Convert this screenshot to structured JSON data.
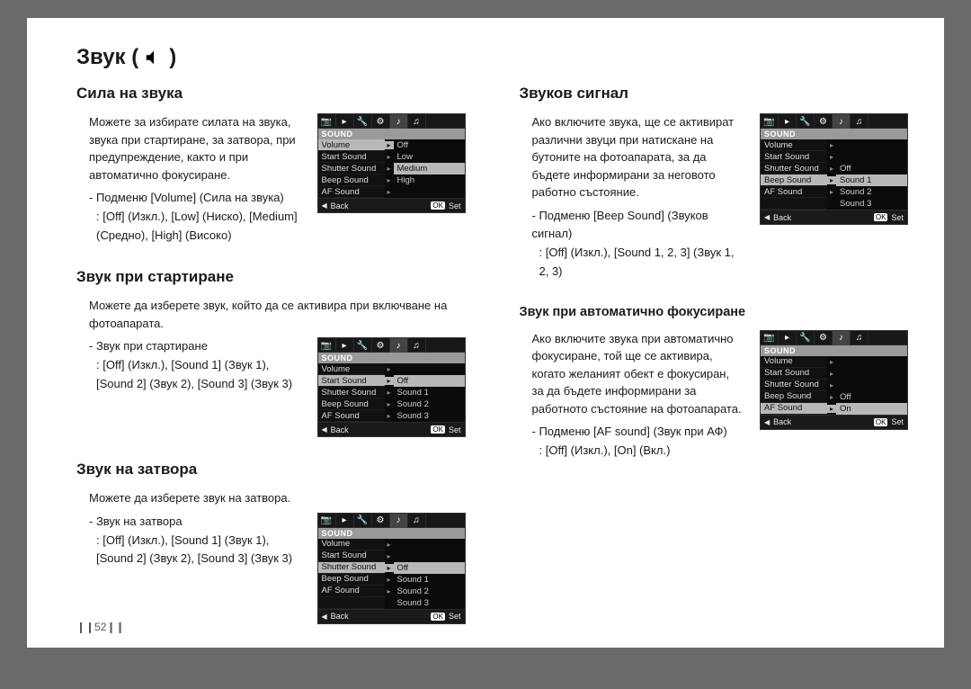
{
  "page": {
    "title_prefix": "Звук (",
    "title_suffix": ")",
    "page_number": "52"
  },
  "lcd_common": {
    "header": "SOUND",
    "back": "Back",
    "ok": "OK",
    "set": "Set",
    "top_icons": [
      "📷",
      "▸",
      "🔧",
      "⚙",
      "♪",
      "♫"
    ]
  },
  "volume": {
    "title": "Сила на звука",
    "desc": "Можете за избирате силата на звука, звука при стартиране, за затвора, при предупреждение, както и при автоматично фокусиране.",
    "submenu_lead": "- Подменю [Volume] (Сила на звука)",
    "submenu_vals": ": [Off] (Изкл.), [Low] (Ниско), [Medium] (Средно), [High] (Високо)",
    "lcd": {
      "rows": [
        {
          "left": "Volume",
          "sel": true,
          "right": "Off"
        },
        {
          "left": "Start Sound",
          "right": "Low"
        },
        {
          "left": "Shutter Sound",
          "right": "Medium",
          "rsel": true
        },
        {
          "left": "Beep Sound",
          "right": "High"
        },
        {
          "left": "AF Sound",
          "right": ""
        }
      ]
    }
  },
  "start": {
    "title": "Звук при стартиране",
    "desc": "Можете да изберете звук, който да се активира при включване на фотоапарата.",
    "submenu_lead": "- Звук при стартиране",
    "submenu_vals": ": [Off] (Изкл.), [Sound 1] (Звук 1), [Sound 2] (Звук 2), [Sound 3] (Звук 3)",
    "lcd": {
      "rows": [
        {
          "left": "Volume",
          "right": ""
        },
        {
          "left": "Start Sound",
          "sel": true,
          "right": "Off",
          "rsel": true
        },
        {
          "left": "Shutter Sound",
          "right": "Sound 1"
        },
        {
          "left": "Beep Sound",
          "right": "Sound 2"
        },
        {
          "left": "AF Sound",
          "right": "Sound 3"
        }
      ]
    }
  },
  "shutter": {
    "title": "Звук на затвора",
    "desc": "Можете да изберете звук на затвора.",
    "submenu_lead": "- Звук на затвора",
    "submenu_vals": ": [Off] (Изкл.), [Sound 1] (Звук 1), [Sound 2] (Звук 2), [Sound 3] (Звук 3)",
    "lcd": {
      "rows": [
        {
          "left": "Volume",
          "right": ""
        },
        {
          "left": "Start Sound",
          "right": ""
        },
        {
          "left": "Shutter Sound",
          "sel": true,
          "right": "Off",
          "rsel": true
        },
        {
          "left": "Beep Sound",
          "right": "Sound 1"
        },
        {
          "left": "AF Sound",
          "right": "Sound 2"
        },
        {
          "left": "",
          "right": "Sound 3"
        }
      ]
    }
  },
  "beep": {
    "title": "Звуков сигнал",
    "desc": "Ако включите звука, ще се активират различни звуци при натискане на бутоните на фотоапарата, за да бъдете информирани за неговото работно състояние.",
    "submenu_lead": "- Подменю [Beep Sound] (Звуков сигнал)",
    "submenu_vals": ": [Off] (Изкл.), [Sound 1, 2, 3] (Звук 1, 2, 3)",
    "lcd": {
      "rows": [
        {
          "left": "Volume",
          "right": ""
        },
        {
          "left": "Start Sound",
          "right": ""
        },
        {
          "left": "Shutter Sound",
          "right": "Off"
        },
        {
          "left": "Beep Sound",
          "sel": true,
          "right": "Sound 1",
          "rsel": true
        },
        {
          "left": "AF Sound",
          "right": "Sound 2"
        },
        {
          "left": "",
          "right": "Sound 3"
        }
      ]
    }
  },
  "af": {
    "title": "Звук при автоматично фокусиране",
    "desc": "Ако включите звука при автоматично фокусиране, той ще се активира, когато желаният обект е фокусиран, за да бъдете информирани за работното състояние на фотоапарата.",
    "submenu_lead": "- Подменю [AF sound] (Звук при АФ)",
    "submenu_vals": ": [Off] (Изкл.), [On] (Вкл.)",
    "lcd": {
      "rows": [
        {
          "left": "Volume",
          "right": ""
        },
        {
          "left": "Start Sound",
          "right": ""
        },
        {
          "left": "Shutter Sound",
          "right": ""
        },
        {
          "left": "Beep Sound",
          "right": "Off"
        },
        {
          "left": "AF Sound",
          "sel": true,
          "right": "On",
          "rsel": true
        }
      ]
    }
  }
}
